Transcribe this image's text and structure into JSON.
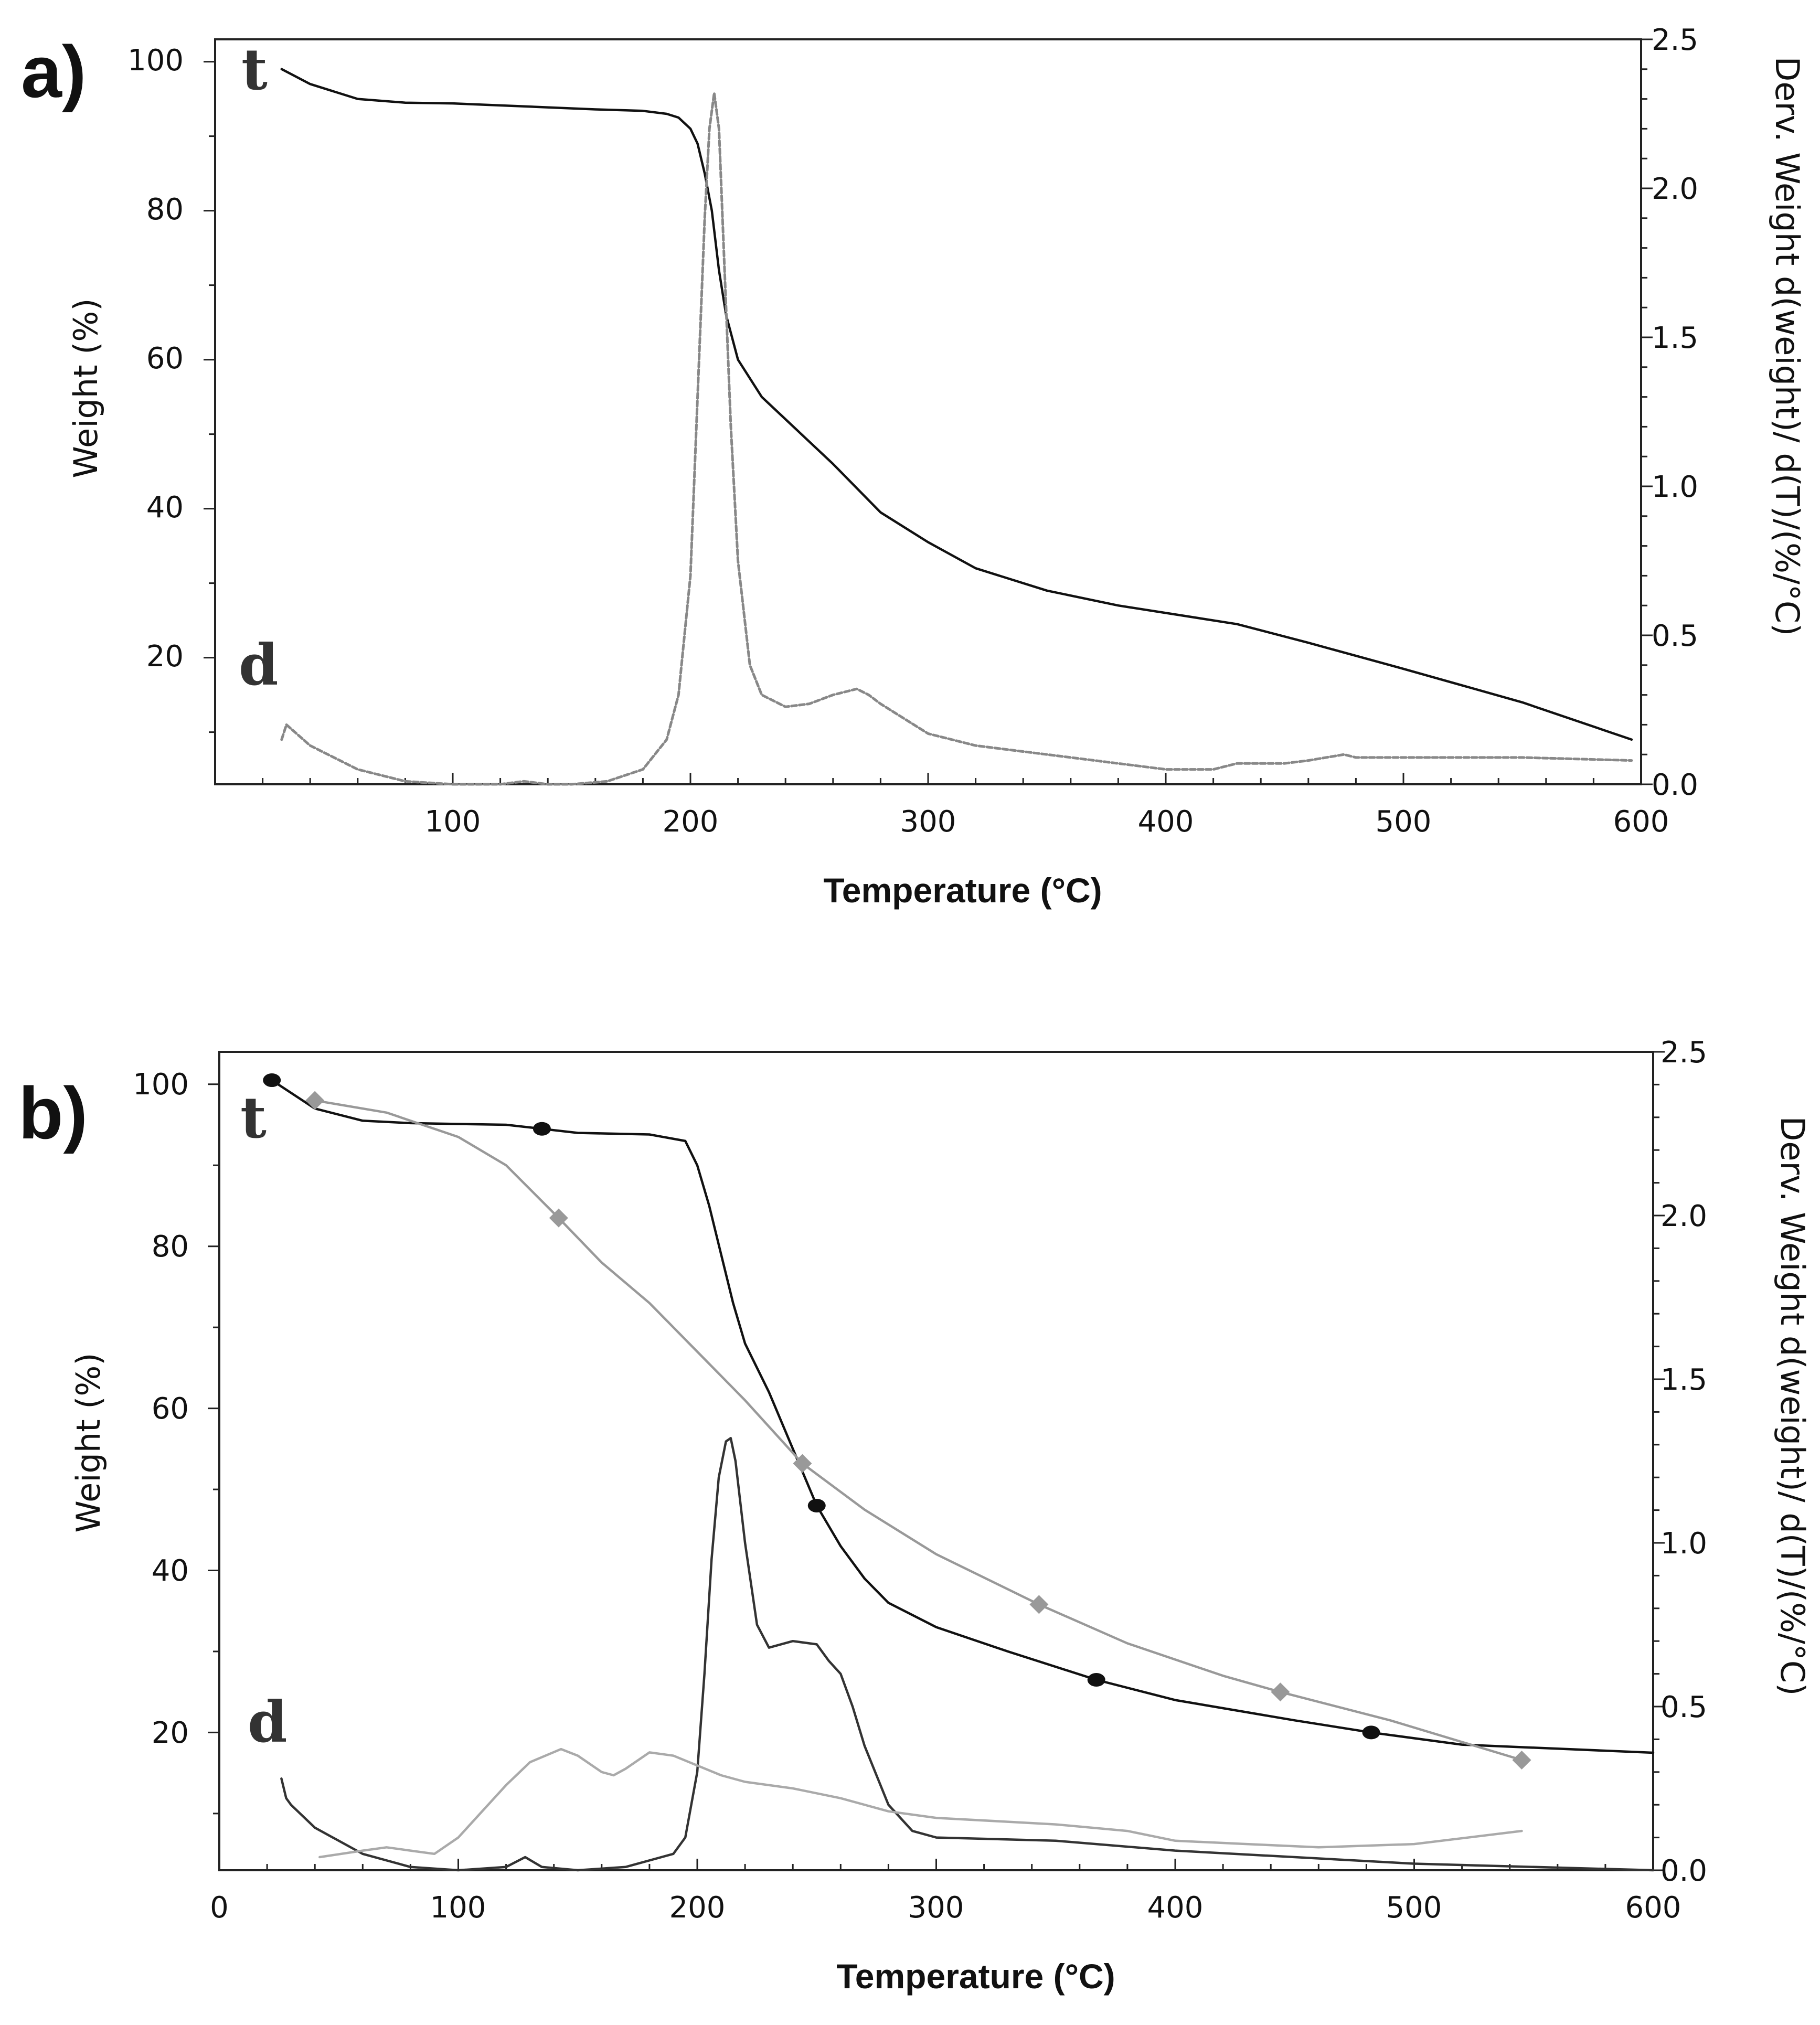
{
  "chart_data": [
    {
      "id": "a",
      "type": "line",
      "panel_label": "a)",
      "xlabel": "Temperature (°C)",
      "ylabel": "Weight (%)",
      "y2label": "Derv. Weight d(weight)/ d(T)/(%/°C)",
      "xlim": [
        0,
        600
      ],
      "ylim": [
        3,
        103
      ],
      "y2lim": [
        0,
        2.5
      ],
      "xticks": [
        100,
        200,
        300,
        400,
        500,
        600
      ],
      "yticks": [
        20,
        40,
        60,
        80,
        100
      ],
      "y2ticks": [
        0.0,
        0.5,
        1.0,
        1.5,
        2.0,
        2.5
      ],
      "curve_labels": {
        "t": "t",
        "d": "d"
      },
      "series": [
        {
          "name": "t",
          "axis": "left",
          "color": "#111111",
          "style": "solid",
          "x": [
            28,
            40,
            60,
            80,
            100,
            130,
            160,
            180,
            190,
            195,
            200,
            203,
            206,
            209,
            212,
            215,
            220,
            230,
            240,
            260,
            280,
            300,
            320,
            350,
            380,
            400,
            430,
            460,
            500,
            550,
            596
          ],
          "y": [
            99,
            97,
            95,
            94.5,
            94.4,
            94,
            93.6,
            93.4,
            93,
            92.5,
            91,
            89,
            85,
            80,
            72,
            66,
            60,
            55,
            52,
            46,
            39.5,
            35.5,
            32,
            29,
            27,
            26,
            24.5,
            22,
            18.5,
            14,
            9
          ]
        },
        {
          "name": "d",
          "axis": "right",
          "color": "#888888",
          "style": "dashed",
          "x": [
            28,
            30,
            40,
            60,
            80,
            100,
            120,
            130,
            140,
            150,
            165,
            180,
            190,
            195,
            200,
            203,
            206,
            208,
            210,
            212,
            214,
            217,
            220,
            225,
            230,
            240,
            250,
            260,
            270,
            275,
            280,
            300,
            320,
            350,
            400,
            420,
            430,
            450,
            460,
            475,
            480,
            500,
            550,
            596
          ],
          "y": [
            0.15,
            0.2,
            0.13,
            0.05,
            0.01,
            0.0,
            0.0,
            0.01,
            0.0,
            0.0,
            0.01,
            0.05,
            0.15,
            0.3,
            0.7,
            1.3,
            1.9,
            2.2,
            2.32,
            2.2,
            1.8,
            1.2,
            0.75,
            0.4,
            0.3,
            0.26,
            0.27,
            0.3,
            0.32,
            0.3,
            0.27,
            0.17,
            0.13,
            0.1,
            0.05,
            0.05,
            0.07,
            0.07,
            0.08,
            0.1,
            0.09,
            0.09,
            0.09,
            0.08
          ]
        }
      ]
    },
    {
      "id": "b",
      "type": "line",
      "panel_label": "b)",
      "xlabel": "Temperature (°C)",
      "ylabel": "Weight (%)",
      "y2label": "Derv. Weight d(weight)/ d(T)/(%/°C)",
      "xlim": [
        0,
        600
      ],
      "ylim": [
        3,
        104
      ],
      "y2lim": [
        0,
        2.5
      ],
      "xticks": [
        0,
        100,
        200,
        300,
        400,
        500,
        600
      ],
      "yticks": [
        20,
        40,
        60,
        80,
        100
      ],
      "y2ticks": [
        0.0,
        0.5,
        1.0,
        1.5,
        2.0,
        2.5
      ],
      "curve_labels": {
        "t": "t",
        "d": "d"
      },
      "series": [
        {
          "name": "t (black, circles)",
          "axis": "left",
          "color": "#111111",
          "style": "solid",
          "marker": "circle",
          "x": [
            22,
            40,
            60,
            80,
            100,
            120,
            135,
            150,
            180,
            195,
            200,
            205,
            210,
            215,
            220,
            230,
            240,
            250,
            260,
            270,
            280,
            300,
            330,
            367,
            400,
            450,
            482,
            520,
            560,
            600
          ],
          "y": [
            100.5,
            97,
            95.5,
            95.2,
            95.1,
            95,
            94.5,
            94,
            93.8,
            93,
            90,
            85,
            79,
            73,
            68,
            62,
            55,
            48,
            43,
            39,
            36,
            33,
            30,
            26.5,
            24,
            21.5,
            20,
            18.5,
            18,
            17.5
          ],
          "marker_x": [
            22,
            135,
            250,
            367,
            482
          ]
        },
        {
          "name": "t (gray, diamonds)",
          "axis": "left",
          "color": "#999999",
          "style": "solid",
          "marker": "diamond",
          "x": [
            40,
            70,
            100,
            120,
            142,
            160,
            180,
            200,
            220,
            244,
            270,
            300,
            343,
            380,
            420,
            444,
            490,
            545
          ],
          "y": [
            98,
            96.5,
            93.5,
            90,
            83.5,
            78,
            73,
            67,
            61,
            53.2,
            47.5,
            42,
            35.8,
            31,
            27,
            25,
            21.5,
            16.6
          ],
          "marker_x": [
            40,
            142,
            244,
            343,
            444,
            545
          ]
        },
        {
          "name": "d (dark)",
          "axis": "right",
          "color": "#333333",
          "style": "solid",
          "x": [
            26,
            28,
            30,
            40,
            60,
            80,
            100,
            120,
            128,
            135,
            150,
            170,
            190,
            195,
            200,
            203,
            206,
            209,
            212,
            214,
            216,
            220,
            225,
            230,
            240,
            250,
            255,
            260,
            265,
            270,
            280,
            290,
            300,
            350,
            400,
            500,
            600
          ],
          "y": [
            0.28,
            0.22,
            0.2,
            0.13,
            0.05,
            0.01,
            0.0,
            0.01,
            0.04,
            0.01,
            0.0,
            0.01,
            0.05,
            0.1,
            0.3,
            0.6,
            0.95,
            1.2,
            1.31,
            1.32,
            1.25,
            1.0,
            0.75,
            0.68,
            0.7,
            0.69,
            0.64,
            0.6,
            0.5,
            0.38,
            0.2,
            0.12,
            0.1,
            0.09,
            0.06,
            0.02,
            0.0
          ]
        },
        {
          "name": "d (light)",
          "axis": "right",
          "color": "#aaaaaa",
          "style": "solid",
          "x": [
            42,
            60,
            70,
            80,
            90,
            100,
            110,
            120,
            130,
            143,
            150,
            160,
            165,
            170,
            180,
            190,
            200,
            210,
            220,
            240,
            260,
            280,
            300,
            350,
            380,
            400,
            430,
            460,
            500,
            545
          ],
          "y": [
            0.04,
            0.06,
            0.07,
            0.06,
            0.05,
            0.1,
            0.18,
            0.26,
            0.33,
            0.37,
            0.35,
            0.3,
            0.29,
            0.31,
            0.36,
            0.35,
            0.32,
            0.29,
            0.27,
            0.25,
            0.22,
            0.18,
            0.16,
            0.14,
            0.12,
            0.09,
            0.08,
            0.07,
            0.08,
            0.12
          ]
        }
      ]
    }
  ]
}
